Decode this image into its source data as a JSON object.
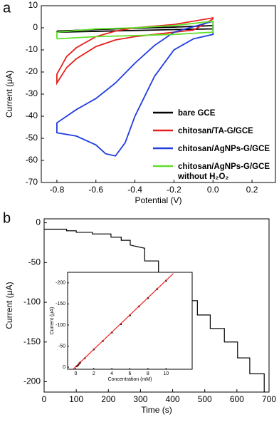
{
  "chart_data": [
    {
      "type": "line",
      "panel_label": "a",
      "x_label": "Potential (V)",
      "y_label": "Current (μA)",
      "xlim": [
        -0.88,
        0.32
      ],
      "ylim": [
        -70,
        10
      ],
      "xticks": [
        -0.8,
        -0.6,
        -0.4,
        -0.2,
        {
          "value": 0,
          "label": "0.0"
        },
        0.2
      ],
      "yticks": [
        10,
        0,
        -10,
        -20,
        -30,
        -40,
        -50,
        -60,
        -70
      ],
      "series": [
        {
          "name": "bare GCE",
          "color": "#000000",
          "x": [
            -0.8,
            -0.6,
            -0.4,
            -0.2,
            0,
            0,
            -0.2,
            -0.4,
            -0.6,
            -0.8,
            -0.8
          ],
          "values": [
            -1.5,
            -0.8,
            -0.2,
            0.3,
            1,
            -0.5,
            -0.8,
            -1.2,
            -1.6,
            -2,
            -1.5
          ]
        },
        {
          "name": "chitosan/TA-G/GCE",
          "color": "#e8201c",
          "x": [
            0,
            -0.1,
            -0.2,
            -0.3,
            -0.4,
            -0.5,
            -0.6,
            -0.7,
            -0.75,
            -0.8,
            -0.8,
            -0.75,
            -0.7,
            -0.6,
            -0.5,
            -0.4,
            -0.2,
            0,
            0
          ],
          "values": [
            4,
            -1,
            -2,
            -3,
            -4,
            -5.5,
            -8.5,
            -14,
            -18,
            -25,
            -21,
            -13,
            -9,
            -4,
            -1.5,
            0,
            1.5,
            4.5,
            4
          ]
        },
        {
          "name": "chitosan/AgNPs-G/GCE",
          "color": "#1f3de0",
          "x": [
            0,
            0,
            -0.1,
            -0.2,
            -0.3,
            -0.4,
            -0.45,
            -0.5,
            -0.55,
            -0.6,
            -0.7,
            -0.8,
            -0.8,
            -0.75,
            -0.7,
            -0.6,
            -0.5,
            -0.4,
            -0.3,
            -0.2,
            -0.1,
            0
          ],
          "values": [
            3,
            -3,
            -5,
            -10,
            -22,
            -40,
            -52,
            -58,
            -57,
            -53,
            -49,
            -47.5,
            -43,
            -40,
            -37,
            -32,
            -25,
            -16,
            -8,
            -2,
            0.5,
            3
          ]
        },
        {
          "name": "chitosan/AgNPs-G/GCE\nwithout H₂O₂",
          "color": "#5fe02a",
          "x": [
            -0.8,
            -0.8,
            -0.6,
            -0.4,
            -0.2,
            0,
            0,
            -0.2,
            -0.4,
            -0.6,
            -0.8
          ],
          "values": [
            -5,
            -2,
            -0.5,
            0,
            1,
            3,
            -2,
            -3,
            -3.5,
            -4,
            -5
          ]
        }
      ]
    },
    {
      "type": "line",
      "panel_label": "b",
      "x_label": "Time (s)",
      "y_label": "Current (μA)",
      "xlim": [
        0,
        700
      ],
      "ylim": [
        -213,
        5
      ],
      "xticks": [
        0,
        100,
        200,
        300,
        400,
        500,
        600,
        700
      ],
      "yticks": [
        0,
        -50,
        -100,
        -150,
        -200
      ],
      "series": [
        {
          "color": "#000000",
          "x": [
            0,
            70,
            70,
            100,
            100,
            150,
            150,
            208,
            208,
            240,
            240,
            268,
            268,
            313,
            313,
            356,
            356,
            396,
            396,
            438,
            438,
            477,
            477,
            517,
            517,
            561,
            561,
            602,
            602,
            640,
            640,
            685,
            685,
            690
          ],
          "values": [
            -8,
            -8,
            -10,
            -10,
            -12,
            -12,
            -14,
            -14,
            -18,
            -18,
            -22,
            -22,
            -28,
            -32,
            -48,
            -48,
            -65,
            -65,
            -83,
            -83,
            -98,
            -98,
            -116,
            -116,
            -133,
            -133,
            -150,
            -150,
            -170,
            -170,
            -190,
            -190,
            -213,
            -213
          ]
        }
      ]
    },
    {
      "type": "scatter",
      "x_label": "Concentration (mM)",
      "y_label": "Current (μA)",
      "xlim": [
        -0.9,
        12.9
      ],
      "ylim": [
        5,
        -225
      ],
      "xticks": [
        0,
        2,
        4,
        6,
        8,
        10
      ],
      "yticks": [
        -200,
        -150,
        -100,
        -50,
        0
      ],
      "series": [
        {
          "color": "#000000",
          "x": [
            0.1,
            0.2,
            0.3,
            0.4,
            0.5,
            1,
            2,
            3,
            4,
            5,
            6,
            7,
            8,
            9,
            10
          ],
          "values": [
            -2,
            -4,
            -6,
            -9,
            -11,
            -21,
            -42,
            -62,
            -82,
            -102,
            -123,
            -144,
            -164,
            -185,
            -205
          ]
        },
        {
          "color": "#e8201c",
          "x": [
            -0.5,
            10.8
          ],
          "values": [
            9,
            -222
          ]
        }
      ]
    }
  ]
}
